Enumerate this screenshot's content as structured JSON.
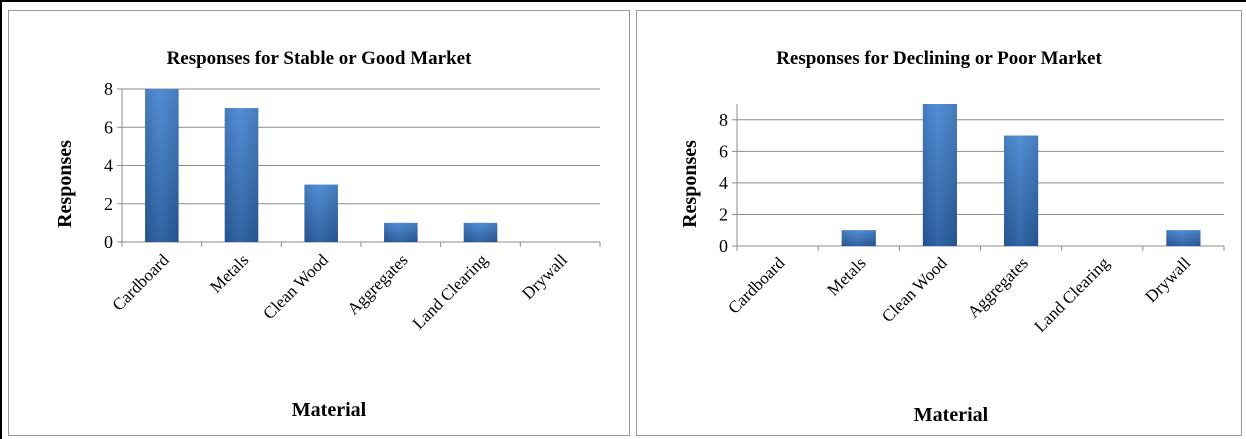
{
  "chart_data": [
    {
      "type": "bar",
      "title": "Responses for Stable or Good Market",
      "xlabel": "Material",
      "ylabel": "Responses",
      "categories": [
        "Cardboard",
        "Metals",
        "Clean Wood",
        "Aggregates",
        "Land Clearing",
        "Drywall"
      ],
      "values": [
        8,
        7,
        3,
        1,
        1,
        0
      ],
      "ylim": [
        0,
        8
      ],
      "yticks": [
        "0",
        "2",
        "4",
        "6",
        "8"
      ],
      "grid": true,
      "bar_color": "#3d73b8"
    },
    {
      "type": "bar",
      "title": "Responses for Declining or Poor Market",
      "xlabel": "Material",
      "ylabel": "Responses",
      "categories": [
        "Cardboard",
        "Metals",
        "Clean Wood",
        "Aggregates",
        "Land Clearing",
        "Drywall"
      ],
      "values": [
        0,
        1,
        9,
        7,
        0,
        1
      ],
      "ylim": [
        0,
        9
      ],
      "yticks": [
        "0",
        "2",
        "4",
        "6",
        "8"
      ],
      "grid": true,
      "bar_color": "#3d73b8"
    }
  ]
}
